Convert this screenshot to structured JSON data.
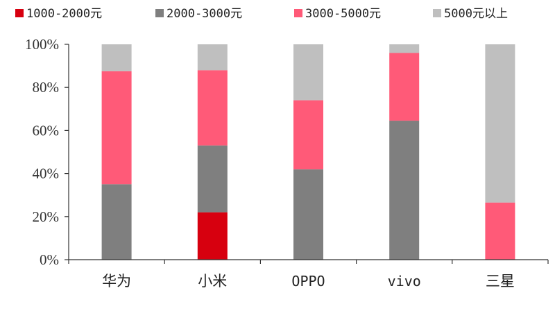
{
  "chart_data": {
    "type": "bar",
    "stacked": true,
    "categories": [
      "华为",
      "小米",
      "OPPO",
      "vivo",
      "三星"
    ],
    "series": [
      {
        "name": "1000-2000元",
        "color": "#d7000f",
        "values": [
          0,
          22,
          0,
          0,
          0
        ]
      },
      {
        "name": "2000-3000元",
        "color": "#7f7f7f",
        "values": [
          35,
          31,
          42,
          64.5,
          0
        ]
      },
      {
        "name": "3000-5000元",
        "color": "#ff5a78",
        "values": [
          52.5,
          35,
          32,
          31.5,
          26.5
        ]
      },
      {
        "name": "5000元以上",
        "color": "#bfbfbf",
        "values": [
          12.5,
          12,
          26,
          4,
          73.5
        ]
      }
    ],
    "y_ticks": [
      "0%",
      "20%",
      "40%",
      "60%",
      "80%",
      "100%"
    ],
    "ylim": [
      0,
      100
    ],
    "grid": false,
    "legend_position": "top"
  }
}
